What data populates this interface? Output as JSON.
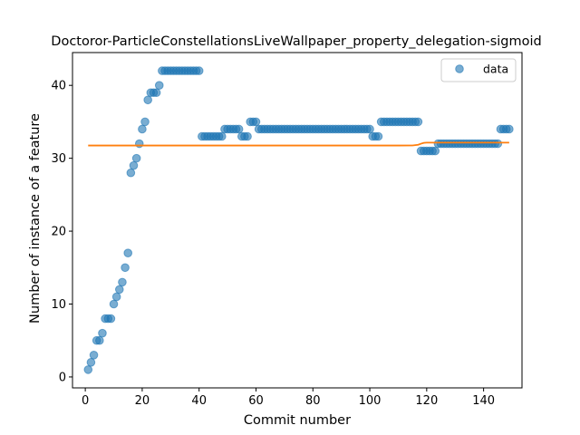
{
  "chart_data": {
    "type": "scatter",
    "title": "Doctoror-ParticleConstellationsLiveWallpaper_property_delegation-sigmoid",
    "xlabel": "Commit number",
    "ylabel": "Number of instance of a feature",
    "xlim": [
      -4.5,
      153.5
    ],
    "ylim": [
      -1.5,
      44.5
    ],
    "xticks": [
      0,
      20,
      40,
      60,
      80,
      100,
      120,
      140
    ],
    "yticks": [
      0,
      10,
      20,
      30,
      40
    ],
    "grid": false,
    "legend": {
      "position": "top-right",
      "entries": [
        "data"
      ]
    },
    "colors": {
      "data": "#1f77b4",
      "fit": "#ff7f0e"
    },
    "series": [
      {
        "name": "data",
        "kind": "scatter",
        "x": [
          1,
          2,
          3,
          4,
          5,
          6,
          7,
          8,
          9,
          10,
          11,
          12,
          13,
          14,
          15,
          16,
          17,
          18,
          19,
          20,
          21,
          22,
          23,
          24,
          25,
          26,
          27,
          28,
          29,
          30,
          31,
          32,
          33,
          34,
          35,
          36,
          37,
          38,
          39,
          40,
          41,
          42,
          43,
          44,
          45,
          46,
          47,
          48,
          49,
          50,
          51,
          52,
          53,
          54,
          55,
          56,
          57,
          58,
          59,
          60,
          61,
          62,
          63,
          64,
          65,
          66,
          67,
          68,
          69,
          70,
          71,
          72,
          73,
          74,
          75,
          76,
          77,
          78,
          79,
          80,
          81,
          82,
          83,
          84,
          85,
          86,
          87,
          88,
          89,
          90,
          91,
          92,
          93,
          94,
          95,
          96,
          97,
          98,
          99,
          100,
          101,
          102,
          103,
          104,
          105,
          106,
          107,
          108,
          109,
          110,
          111,
          112,
          113,
          114,
          115,
          116,
          117,
          118,
          119,
          120,
          121,
          122,
          123,
          124,
          125,
          126,
          127,
          128,
          129,
          130,
          131,
          132,
          133,
          134,
          135,
          136,
          137,
          138,
          139,
          140,
          141,
          142,
          143,
          144,
          145,
          146,
          147,
          148,
          149
        ],
        "y": [
          1,
          2,
          3,
          5,
          5,
          6,
          8,
          8,
          8,
          10,
          11,
          12,
          13,
          15,
          17,
          28,
          29,
          30,
          32,
          34,
          35,
          38,
          39,
          39,
          39,
          40,
          42,
          42,
          42,
          42,
          42,
          42,
          42,
          42,
          42,
          42,
          42,
          42,
          42,
          42,
          33,
          33,
          33,
          33,
          33,
          33,
          33,
          33,
          34,
          34,
          34,
          34,
          34,
          34,
          33,
          33,
          33,
          35,
          35,
          35,
          34,
          34,
          34,
          34,
          34,
          34,
          34,
          34,
          34,
          34,
          34,
          34,
          34,
          34,
          34,
          34,
          34,
          34,
          34,
          34,
          34,
          34,
          34,
          34,
          34,
          34,
          34,
          34,
          34,
          34,
          34,
          34,
          34,
          34,
          34,
          34,
          34,
          34,
          34,
          34,
          33,
          33,
          33,
          35,
          35,
          35,
          35,
          35,
          35,
          35,
          35,
          35,
          35,
          35,
          35,
          35,
          35,
          31,
          31,
          31,
          31,
          31,
          31,
          32,
          32,
          32,
          32,
          32,
          32,
          32,
          32,
          32,
          32,
          32,
          32,
          32,
          32,
          32,
          32,
          32,
          32,
          32,
          32,
          32,
          32,
          34,
          34,
          34,
          34
        ]
      },
      {
        "name": "",
        "kind": "line",
        "x": [
          1,
          10,
          20,
          30,
          40,
          50,
          60,
          70,
          80,
          90,
          100,
          105,
          110,
          115,
          117,
          118,
          119,
          120,
          121,
          122,
          125,
          130,
          135,
          140,
          145,
          149
        ],
        "y": [
          31.75,
          31.75,
          31.75,
          31.75,
          31.75,
          31.75,
          31.75,
          31.75,
          31.75,
          31.75,
          31.75,
          31.75,
          31.75,
          31.76,
          31.85,
          32.0,
          32.12,
          32.15,
          32.15,
          32.15,
          32.15,
          32.15,
          32.15,
          32.15,
          32.15,
          32.15
        ]
      }
    ]
  }
}
